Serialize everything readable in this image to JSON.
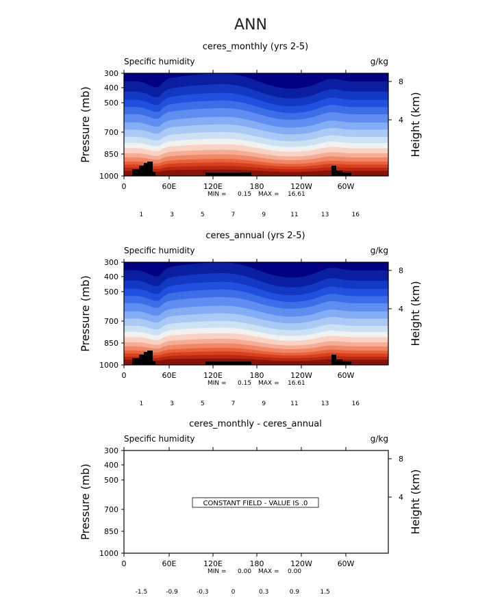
{
  "page_title": "ANN",
  "colors": {
    "frame": "#000000",
    "land_mask": "#000000",
    "palette": [
      "#000080",
      "#0a1ea0",
      "#1238c4",
      "#2050dd",
      "#3d6ee8",
      "#5f8ef0",
      "#85adf3",
      "#aac9f5",
      "#cde1f5",
      "#f1f1f1",
      "#fad2c4",
      "#f6ad98",
      "#f08866",
      "#e8623c",
      "#d8401f",
      "#b82812",
      "#8a1208"
    ]
  },
  "chart_data": [
    {
      "type": "heatmap",
      "title": "ceres_monthly (yrs 2-5)",
      "field_label": "Specific humidity",
      "units": "g/kg",
      "ylabel": "Pressure (mb)",
      "ylabel_right": "Height (km)",
      "x_ticks": [
        "0",
        "60E",
        "120E",
        "180",
        "120W",
        "60W"
      ],
      "y_ticks": [
        "300",
        "400",
        "500",
        "700",
        "850",
        "1000"
      ],
      "y_ticks_right": [
        "8",
        "4"
      ],
      "stats": {
        "min_label": "MIN =",
        "min": "0.15",
        "max_label": "MAX =",
        "max": "16.61"
      },
      "colorbar_labels": [
        "1",
        "3",
        "5",
        "7",
        "9",
        "11",
        "13",
        "16"
      ]
    },
    {
      "type": "heatmap",
      "title": "ceres_annual (yrs 2-5)",
      "field_label": "Specific humidity",
      "units": "g/kg",
      "ylabel": "Pressure (mb)",
      "ylabel_right": "Height (km)",
      "x_ticks": [
        "0",
        "60E",
        "120E",
        "180",
        "120W",
        "60W"
      ],
      "y_ticks": [
        "300",
        "400",
        "500",
        "700",
        "850",
        "1000"
      ],
      "y_ticks_right": [
        "8",
        "4"
      ],
      "stats": {
        "min_label": "MIN =",
        "min": "0.15",
        "max_label": "MAX =",
        "max": "16.61"
      },
      "colorbar_labels": [
        "1",
        "3",
        "5",
        "7",
        "9",
        "11",
        "13",
        "16"
      ]
    },
    {
      "type": "heatmap",
      "title": "ceres_monthly - ceres_annual",
      "field_label": "Specific humidity",
      "units": "g/kg",
      "ylabel": "Pressure (mb)",
      "ylabel_right": "Height (km)",
      "x_ticks": [
        "0",
        "60E",
        "120E",
        "180",
        "120W",
        "60W"
      ],
      "y_ticks": [
        "300",
        "400",
        "500",
        "700",
        "850",
        "1000"
      ],
      "y_ticks_right": [
        "8",
        "4"
      ],
      "stats": {
        "min_label": "MIN =",
        "min": "0.00",
        "max_label": "MAX =",
        "max": "0.00"
      },
      "message": "CONSTANT FIELD - VALUE IS .0",
      "colorbar_labels": [
        "-1.5",
        "-0.9",
        "-0.3",
        "0",
        "0.3",
        "0.9",
        "1.5"
      ]
    }
  ]
}
